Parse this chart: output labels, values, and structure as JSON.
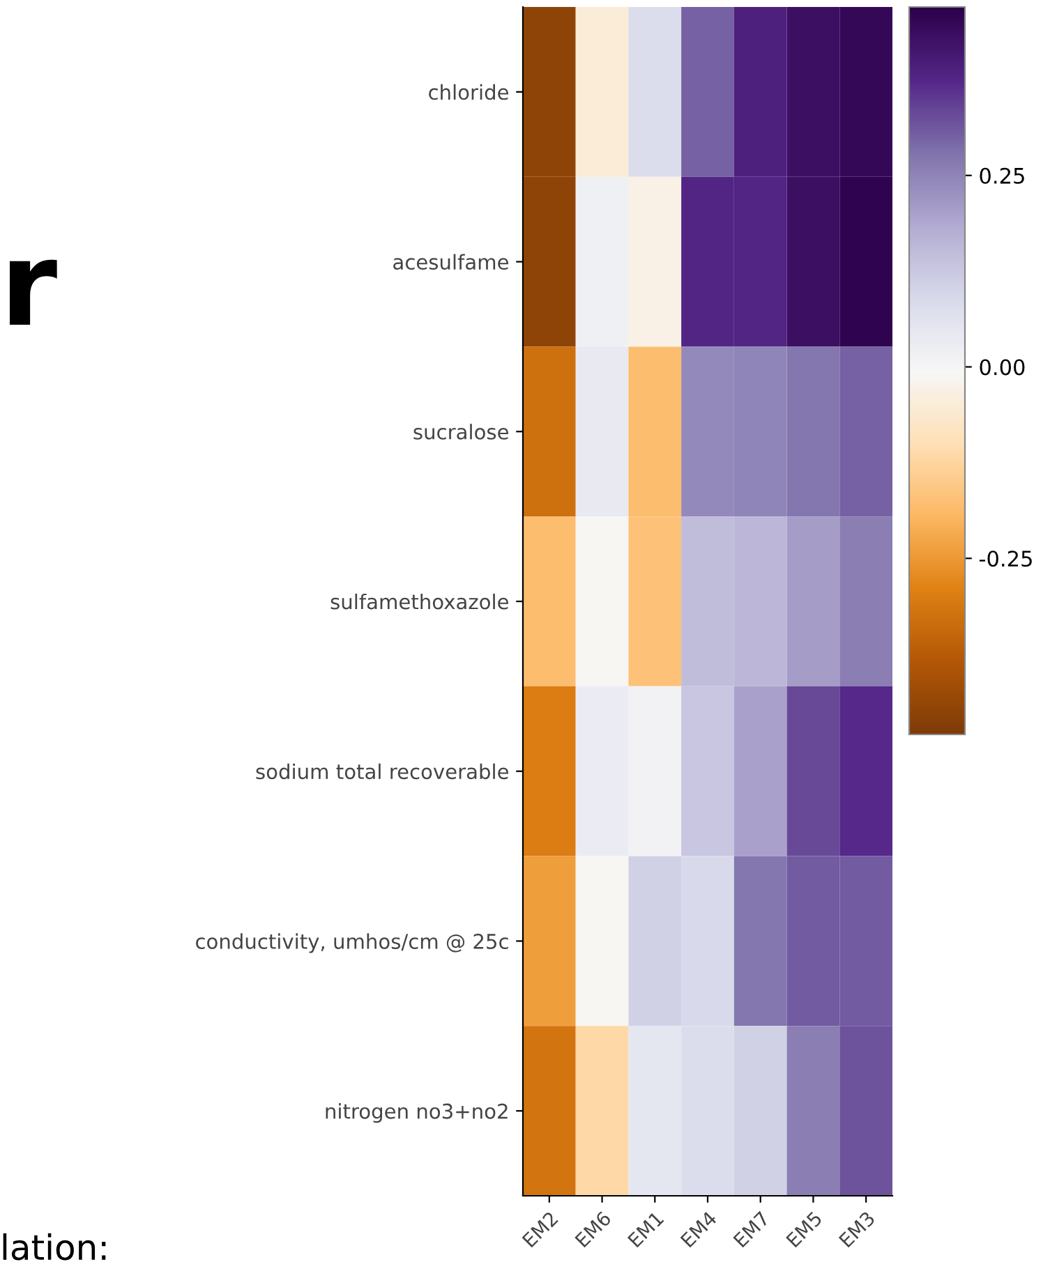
{
  "chart_data": {
    "type": "heatmap",
    "categories": [
      "EM2",
      "EM6",
      "EM1",
      "EM4",
      "EM7",
      "EM5",
      "EM3"
    ],
    "y_categories": [
      "chloride",
      "acesulfame",
      "sucralose",
      "sulfamethoxazole",
      "sodium total recoverable",
      "conductivity, umhos/cm @ 25c",
      "nitrogen no3+no2"
    ],
    "cells": [
      [
        -0.45,
        -0.05,
        0.08,
        0.3,
        0.39,
        0.43,
        0.45
      ],
      [
        -0.45,
        0.02,
        -0.03,
        0.38,
        0.38,
        0.43,
        0.46
      ],
      [
        -0.33,
        0.04,
        -0.18,
        0.24,
        0.25,
        0.27,
        0.3
      ],
      [
        -0.18,
        -0.01,
        -0.17,
        0.15,
        0.16,
        0.21,
        0.26
      ],
      [
        -0.3,
        0.03,
        0.01,
        0.13,
        0.2,
        0.33,
        0.37
      ],
      [
        -0.24,
        -0.01,
        0.11,
        0.09,
        0.27,
        0.31,
        0.31
      ],
      [
        -0.32,
        -0.12,
        0.05,
        0.08,
        0.11,
        0.26,
        0.32
      ]
    ],
    "clim": [
      -0.48,
      0.47
    ],
    "cticks": [
      {
        "value": 0.25,
        "label": "0.25"
      },
      {
        "value": 0.0,
        "label": "0.00"
      },
      {
        "value": -0.25,
        "label": "-0.25"
      }
    ],
    "annotations": [
      "r",
      "lation:"
    ]
  }
}
